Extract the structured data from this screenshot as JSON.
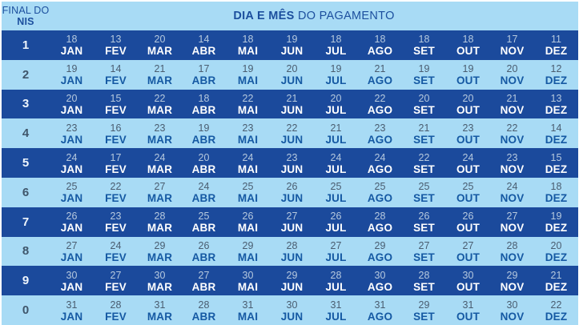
{
  "header": {
    "final_do": "FINAL DO",
    "nis": "NIS",
    "title_bold": "DIA E MÊS",
    "title_rest": " DO PAGAMENTO"
  },
  "months": [
    "JAN",
    "FEV",
    "MAR",
    "ABR",
    "MAI",
    "JUN",
    "JUL",
    "AGO",
    "SET",
    "OUT",
    "NOV",
    "DEZ"
  ],
  "rows": [
    {
      "nis": "1",
      "days": [
        18,
        13,
        20,
        14,
        18,
        19,
        18,
        18,
        18,
        18,
        17,
        11
      ]
    },
    {
      "nis": "2",
      "days": [
        19,
        14,
        21,
        17,
        19,
        20,
        19,
        21,
        19,
        19,
        20,
        12
      ]
    },
    {
      "nis": "3",
      "days": [
        20,
        15,
        22,
        18,
        22,
        21,
        20,
        22,
        20,
        20,
        21,
        13
      ]
    },
    {
      "nis": "4",
      "days": [
        23,
        16,
        23,
        19,
        23,
        22,
        21,
        23,
        21,
        23,
        22,
        14
      ]
    },
    {
      "nis": "5",
      "days": [
        24,
        17,
        24,
        20,
        24,
        23,
        24,
        24,
        22,
        24,
        23,
        15
      ]
    },
    {
      "nis": "6",
      "days": [
        25,
        22,
        27,
        24,
        25,
        26,
        25,
        25,
        25,
        25,
        24,
        18
      ]
    },
    {
      "nis": "7",
      "days": [
        26,
        23,
        28,
        25,
        26,
        27,
        26,
        28,
        26,
        26,
        27,
        19
      ]
    },
    {
      "nis": "8",
      "days": [
        27,
        24,
        29,
        26,
        29,
        28,
        27,
        29,
        27,
        27,
        28,
        20
      ]
    },
    {
      "nis": "9",
      "days": [
        30,
        27,
        30,
        27,
        30,
        29,
        28,
        30,
        28,
        30,
        29,
        21
      ]
    },
    {
      "nis": "0",
      "days": [
        31,
        28,
        31,
        28,
        31,
        30,
        31,
        31,
        29,
        31,
        30,
        22
      ]
    }
  ],
  "colors": {
    "dark_row_bg": "#1b4a9c",
    "light_row_bg": "#a8dbf5",
    "header_bg": "#a8dbf5",
    "header_text": "#1c4f9e",
    "day_on_dark": "#b6c9de",
    "month_on_dark": "#ffffff",
    "day_on_light": "#4a5d70",
    "month_on_light": "#1559a3",
    "nis_on_dark": "#eef5fc",
    "nis_on_light": "#3f566b",
    "page_bg": "#ffffff"
  },
  "chart_data": {
    "type": "table",
    "title": "DIA E MÊS DO PAGAMENTO",
    "row_header": "FINAL DO NIS",
    "columns": [
      "JAN",
      "FEV",
      "MAR",
      "ABR",
      "MAI",
      "JUN",
      "JUL",
      "AGO",
      "SET",
      "OUT",
      "NOV",
      "DEZ"
    ],
    "rows": [
      {
        "final_do_nis": "1",
        "days": [
          18,
          13,
          20,
          14,
          18,
          19,
          18,
          18,
          18,
          18,
          17,
          11
        ]
      },
      {
        "final_do_nis": "2",
        "days": [
          19,
          14,
          21,
          17,
          19,
          20,
          19,
          21,
          19,
          19,
          20,
          12
        ]
      },
      {
        "final_do_nis": "3",
        "days": [
          20,
          15,
          22,
          18,
          22,
          21,
          20,
          22,
          20,
          20,
          21,
          13
        ]
      },
      {
        "final_do_nis": "4",
        "days": [
          23,
          16,
          23,
          19,
          23,
          22,
          21,
          23,
          21,
          23,
          22,
          14
        ]
      },
      {
        "final_do_nis": "5",
        "days": [
          24,
          17,
          24,
          20,
          24,
          23,
          24,
          24,
          22,
          24,
          23,
          15
        ]
      },
      {
        "final_do_nis": "6",
        "days": [
          25,
          22,
          27,
          24,
          25,
          26,
          25,
          25,
          25,
          25,
          24,
          18
        ]
      },
      {
        "final_do_nis": "7",
        "days": [
          26,
          23,
          28,
          25,
          26,
          27,
          26,
          28,
          26,
          26,
          27,
          19
        ]
      },
      {
        "final_do_nis": "8",
        "days": [
          27,
          24,
          29,
          26,
          29,
          28,
          27,
          29,
          27,
          27,
          28,
          20
        ]
      },
      {
        "final_do_nis": "9",
        "days": [
          30,
          27,
          30,
          27,
          30,
          29,
          28,
          30,
          28,
          30,
          29,
          21
        ]
      },
      {
        "final_do_nis": "0",
        "days": [
          31,
          28,
          31,
          28,
          31,
          30,
          31,
          31,
          29,
          31,
          30,
          22
        ]
      }
    ],
    "layout": {
      "striping": "rows for NIS 1,3,5,7,9 dark blue; rows for NIS 2,4,6,8,0 light blue",
      "cell_format": "day number above bold month abbreviation"
    }
  }
}
